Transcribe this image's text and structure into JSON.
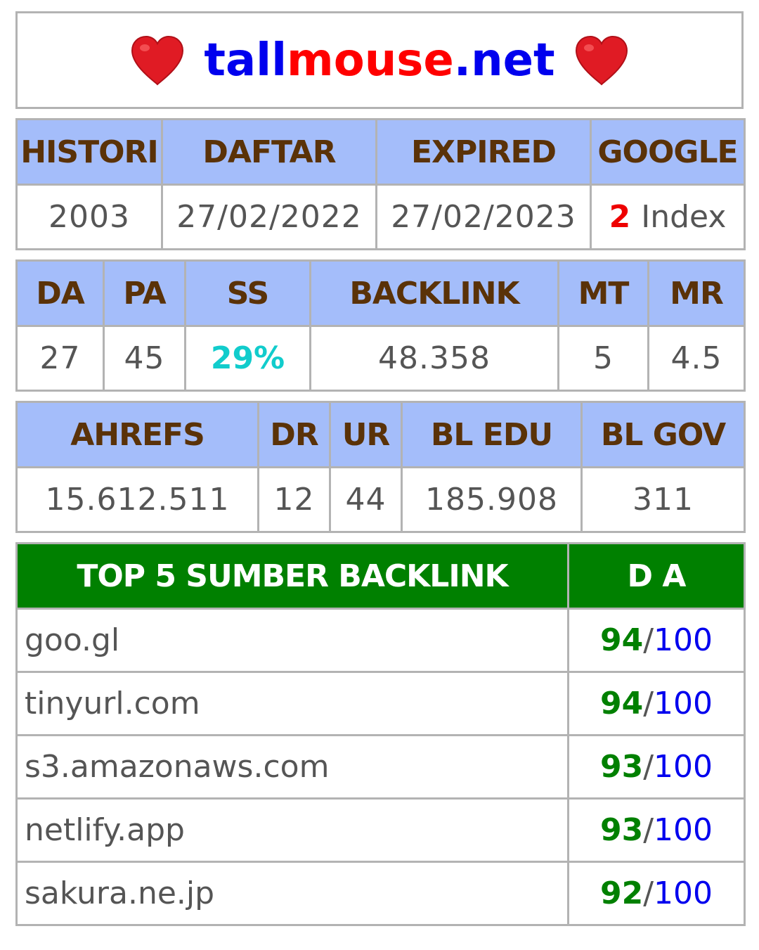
{
  "site": {
    "name_part1": "tall",
    "name_part2": "mouse",
    "name_part3": ".net",
    "left_icon": "heart-icon",
    "right_icon": "heart-icon",
    "heart_color": "#e01b24"
  },
  "history": {
    "headers": [
      "HISTORI",
      "DAFTAR",
      "EXPIRED",
      "GOOGLE"
    ],
    "year": "2003",
    "registered": "27/02/2022",
    "expired": "27/02/2023",
    "google_count": "2",
    "google_label": " Index"
  },
  "moz": {
    "headers": [
      "DA",
      "PA",
      "SS",
      "BACKLINK",
      "MT",
      "MR"
    ],
    "da": "27",
    "pa": "45",
    "ss": "29%",
    "backlink": "48.358",
    "mt": "5",
    "mr": "4.5"
  },
  "ahrefs": {
    "headers": [
      "AHREFS",
      "DR",
      "UR",
      "BL EDU",
      "BL GOV"
    ],
    "ahrefs": "15.612.511",
    "dr": "12",
    "ur": "44",
    "bl_edu": "185.908",
    "bl_gov": "311"
  },
  "top5": {
    "header_source": "TOP 5 SUMBER BACKLINK",
    "header_da": "D A",
    "rows": [
      {
        "domain": "goo.gl",
        "da": "94",
        "slash": "/",
        "max": "100"
      },
      {
        "domain": "tinyurl.com",
        "da": "94",
        "slash": "/",
        "max": "100"
      },
      {
        "domain": "s3.amazonaws.com",
        "da": "93",
        "slash": "/",
        "max": "100"
      },
      {
        "domain": "netlify.app",
        "da": "93",
        "slash": "/",
        "max": "100"
      },
      {
        "domain": "sakura.ne.jp",
        "da": "92",
        "slash": "/",
        "max": "100"
      }
    ]
  },
  "colors": {
    "header_blue": "#a4bdfa",
    "header_text": "#5a3208",
    "top5_green": "#008000",
    "border_gray": "#b3b3b3"
  }
}
